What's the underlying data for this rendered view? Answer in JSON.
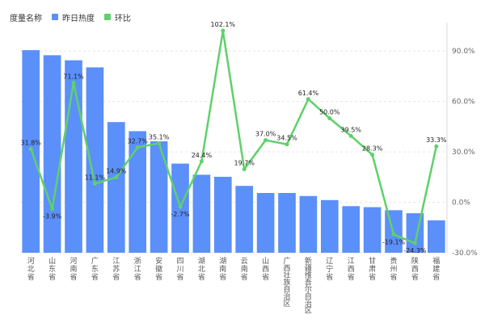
{
  "legend": {
    "title": "度量名称",
    "items": [
      {
        "label": "昨日热度",
        "color": "#5b8ff9"
      },
      {
        "label": "环比",
        "color": "#5ed16a"
      }
    ]
  },
  "chart_data": {
    "type": "bar",
    "categories": [
      "河北省",
      "山东省",
      "河南省",
      "广东省",
      "江苏省",
      "浙江省",
      "安徽省",
      "四川省",
      "湖北省",
      "湖南省",
      "云南省",
      "山西省",
      "广西壮族自治区",
      "新疆维吾尔自治区",
      "辽宁省",
      "江西省",
      "甘肃省",
      "贵州省",
      "陕西省",
      "福建省"
    ],
    "series": [
      {
        "name": "昨日热度",
        "type": "bar",
        "axis": "left",
        "values": [
          100,
          97.5,
          95,
          91.5,
          64.5,
          60,
          55,
          44,
          38.5,
          37.5,
          33,
          29.5,
          29.5,
          28,
          26,
          23,
          22.5,
          21,
          19.5,
          16
        ]
      },
      {
        "name": "环比",
        "type": "line",
        "axis": "right",
        "values": [
          31.8,
          -3.9,
          71.1,
          11.1,
          14.9,
          32.7,
          35.1,
          -2.7,
          24.4,
          102.1,
          19.7,
          37.0,
          34.5,
          61.4,
          50.0,
          39.5,
          28.3,
          -19.1,
          -24.3,
          33.3
        ],
        "labels": [
          "31.8%",
          "-3.9%",
          "71.1%",
          "11.1%",
          "14.9%",
          "32.7%",
          "35.1%",
          "-2.7%",
          "24.4%",
          "102.1%",
          "19.7%",
          "37.0%",
          "34.5%",
          "61.4%",
          "50.0%",
          "39.5%",
          "28.3%",
          "-19.1%",
          "-24.3%",
          "33.3%"
        ]
      }
    ],
    "y_left_lim": [
      0,
      112
    ],
    "y_right_lim": [
      -30,
      105
    ],
    "y_right_ticks": [
      -30,
      0,
      30,
      60,
      90
    ],
    "y_right_tick_labels": [
      "-30.0%",
      "0.0%",
      "30.0%",
      "60.0%",
      "90.0%"
    ],
    "grid": true
  }
}
